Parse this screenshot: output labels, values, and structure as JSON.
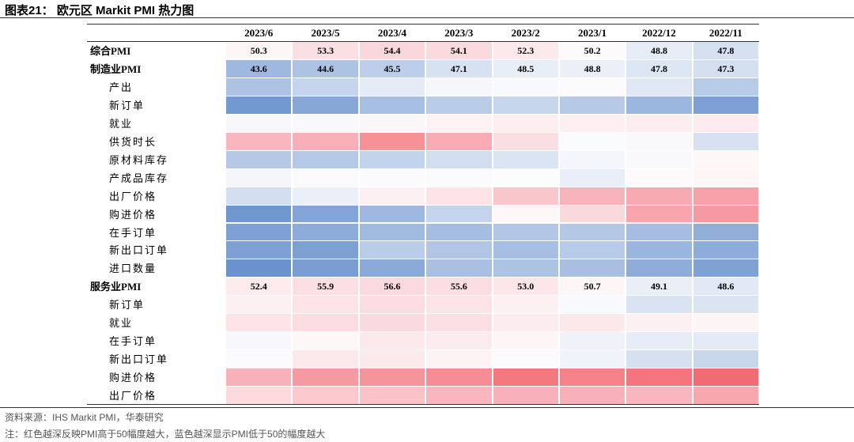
{
  "title": "图表21： 欧元区 Markit PMI 热力图",
  "table": {
    "columns": [
      "2023/6",
      "2023/5",
      "2023/4",
      "2023/3",
      "2023/2",
      "2023/1",
      "2022/12",
      "2022/11"
    ],
    "rows": [
      {
        "label": "综合PMI",
        "values": [
          "50.3",
          "53.3",
          "54.4",
          "54.1",
          "52.3",
          "50.2",
          "48.8",
          "47.8"
        ],
        "colors": [
          "#fdf6f7",
          "#fbe0e3",
          "#fad7db",
          "#fadadd",
          "#fce9eb",
          "#fdfafb",
          "#e6ecf6",
          "#d5e0f0"
        ]
      },
      {
        "label": "制造业PMI",
        "values": [
          "43.6",
          "44.6",
          "45.5",
          "47.1",
          "48.5",
          "48.8",
          "47.8",
          "47.3"
        ],
        "colors": [
          "#9fb8e0",
          "#adc3e4",
          "#bccee9",
          "#d6e1f1",
          "#e8eef7",
          "#ebf0f8",
          "#dde6f3",
          "#d4dff0"
        ]
      },
      {
        "label": "产出",
        "colors": [
          "#aec3e4",
          "#c4d4ec",
          "#e5ebf6",
          "#f5f7fb",
          "#f8f9fc",
          "#fbfbfd",
          "#e0e7f4",
          "#b7cbe8"
        ]
      },
      {
        "label": "新订单",
        "colors": [
          "#7399d1",
          "#87a8d7",
          "#a7bfe3",
          "#b9cde9",
          "#c6d6ed",
          "#b6cae8",
          "#9cb7df",
          "#7d9fd3"
        ]
      },
      {
        "label": "就业",
        "colors": [
          "#f8f8fc",
          "#f9f9fc",
          "#fbf7f9",
          "#fcf1f3",
          "#fceef1",
          "#fceef1",
          "#fcedf0",
          "#fcebee"
        ]
      },
      {
        "label": "供货时长",
        "colors": [
          "#f8b7bf",
          "#f8b0b8",
          "#f69198",
          "#f8abb3",
          "#fadde1",
          "#fafbfd",
          "#f9f9fb",
          "#d7e1f1"
        ]
      },
      {
        "label": "原材料库存",
        "colors": [
          "#b5c8e6",
          "#b6cae7",
          "#c2d3ec",
          "#d2ddf0",
          "#dbe4f3",
          "#f5f6fb",
          "#f9f9fc",
          "#fdf7f8"
        ]
      },
      {
        "label": "产成品库存",
        "colors": [
          "#f5f6fb",
          "#fafafd",
          "#fbfbfd",
          "#fbfbfd",
          "#fcfcfd",
          "#e9eef8",
          "#fdf9fa",
          "#fdf5f6"
        ]
      },
      {
        "label": "出厂价格",
        "colors": [
          "#d3def0",
          "#eaeff8",
          "#fcf0f2",
          "#fbe3e6",
          "#f9c6cc",
          "#f8b3ba",
          "#f8aab2",
          "#f7a2aa"
        ]
      },
      {
        "label": "购进价格",
        "colors": [
          "#6f96cf",
          "#82a4d6",
          "#9fb8e0",
          "#c4d4ec",
          "#fdf7f8",
          "#fad9dd",
          "#f7a4ac",
          "#f699a2"
        ]
      },
      {
        "label": "在手订单",
        "colors": [
          "#7d9fd3",
          "#8eacd9",
          "#a1badf",
          "#a5bde1",
          "#b2c6e5",
          "#b4c8e6",
          "#a6bde1",
          "#91aed9"
        ]
      },
      {
        "label": "新出口订单",
        "colors": [
          "#7e9fd3",
          "#7da0d3",
          "#b9cce8",
          "#b1c6e5",
          "#a7bfe2",
          "#b7cae7",
          "#9bb6de",
          "#8eacd9"
        ]
      },
      {
        "label": "进口数量",
        "colors": [
          "#6a92cd",
          "#7b9ed2",
          "#8caad8",
          "#a9c0e2",
          "#adc3e4",
          "#a8bfe2",
          "#90add9",
          "#7fa1d4"
        ]
      },
      {
        "label": "服务业PMI",
        "values": [
          "52.4",
          "55.9",
          "56.6",
          "55.6",
          "53.0",
          "50.7",
          "49.1",
          "48.6"
        ],
        "colors": [
          "#fdeaec",
          "#fcdfe3",
          "#fbdadf",
          "#fcdde1",
          "#fce6e9",
          "#fdf6f7",
          "#e9eef7",
          "#e2e9f5"
        ]
      },
      {
        "label": "新订单",
        "colors": [
          "#fdf0f2",
          "#fce3e6",
          "#fbdde1",
          "#fce3e6",
          "#fcf0f2",
          "#f8f9fc",
          "#dae3f2",
          "#dbe4f3"
        ]
      },
      {
        "label": "就业",
        "colors": [
          "#fce3e6",
          "#fbdde1",
          "#fbdadf",
          "#fbdfe3",
          "#fcecef",
          "#fce8eb",
          "#fcf0f2",
          "#fdf4f6"
        ]
      },
      {
        "label": "在手订单",
        "colors": [
          "#f8f8fc",
          "#fdf7f8",
          "#fce9ec",
          "#fcebee",
          "#fdf5f6",
          "#eff2f9",
          "#e7ecf7",
          "#e5ebf6"
        ]
      },
      {
        "label": "新出口订单",
        "colors": [
          "#fbfbfd",
          "#fce9ec",
          "#fce9ec",
          "#fdf3f5",
          "#fbfbfd",
          "#f0f3f9",
          "#d6e0f0",
          "#c9d7ed"
        ]
      },
      {
        "label": "购进价格",
        "colors": [
          "#f8b1b8",
          "#f69aa2",
          "#f6949c",
          "#f58d95",
          "#f4787f",
          "#f58289",
          "#f4757d",
          "#f26b73"
        ]
      },
      {
        "label": "出厂价格",
        "colors": [
          "#fcd9dd",
          "#fbc9ce",
          "#f9c3c8",
          "#f9b7bd",
          "#f8b1b8",
          "#f8b1b8",
          "#f9b6bc",
          "#f8a7af"
        ]
      }
    ]
  },
  "notes": [
    "资料来源：IHS Markit PMI，华泰研究",
    "注：红色越深反映PMI高于50幅度越大，蓝色越深显示PMI低于50的幅度越大"
  ]
}
